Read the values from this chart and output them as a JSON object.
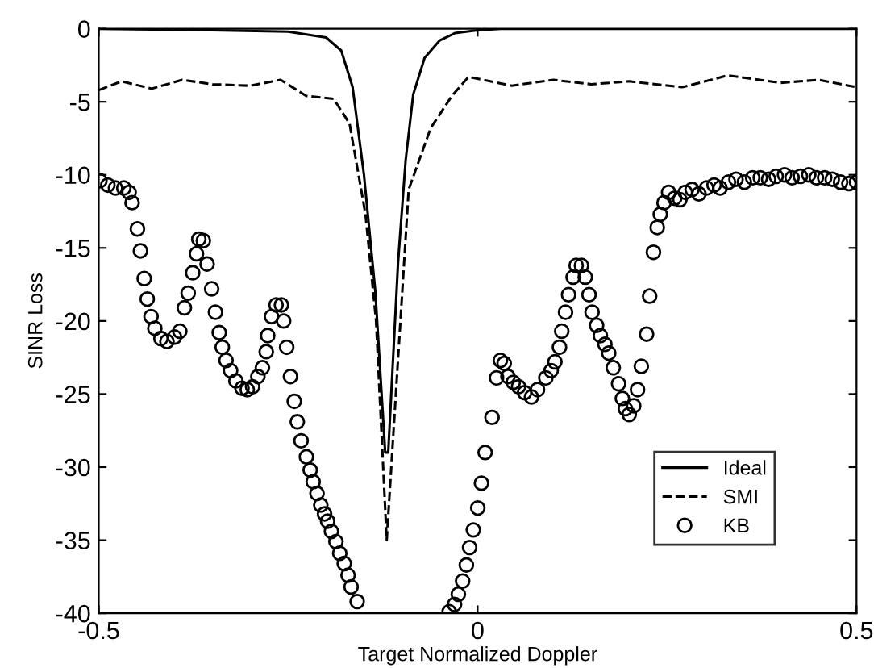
{
  "chart_data": {
    "type": "line",
    "xlabel": "Target Normalized Doppler",
    "ylabel": "SINR Loss",
    "xlim": [
      -0.5,
      0.5
    ],
    "ylim": [
      -40,
      0
    ],
    "xticks": [
      -0.5,
      0,
      0.5
    ],
    "yticks": [
      -40,
      -35,
      -30,
      -25,
      -20,
      -15,
      -10,
      -5,
      0
    ],
    "grid": false,
    "legend": "bottom right",
    "series": [
      {
        "name": "Ideal",
        "color": "#000000",
        "line_style": "solid",
        "marker": "none",
        "x": [
          -0.5,
          -0.35,
          -0.25,
          -0.2,
          -0.18,
          -0.165,
          -0.15,
          -0.135,
          -0.122,
          -0.118,
          -0.105,
          -0.095,
          -0.085,
          -0.07,
          -0.05,
          -0.03,
          0,
          0.03,
          0.5
        ],
        "values": [
          0,
          -0.1,
          -0.2,
          -0.6,
          -1.5,
          -4,
          -10,
          -18,
          -29,
          -29,
          -16,
          -9,
          -4.5,
          -2,
          -0.8,
          -0.3,
          -0.1,
          0,
          0
        ]
      },
      {
        "name": "SMI",
        "color": "#000000",
        "line_style": "dashed",
        "marker": "none",
        "x": [
          -0.5,
          -0.47,
          -0.43,
          -0.39,
          -0.35,
          -0.3,
          -0.26,
          -0.226,
          -0.19,
          -0.169,
          -0.148,
          -0.134,
          -0.12,
          -0.091,
          -0.062,
          -0.034,
          -0.012,
          0.045,
          0.1,
          0.15,
          0.2,
          0.27,
          0.33,
          0.4,
          0.45,
          0.5
        ],
        "values": [
          -4.2,
          -3.6,
          -4.1,
          -3.5,
          -3.8,
          -3.9,
          -3.5,
          -4.6,
          -4.8,
          -6.5,
          -12.7,
          -20,
          -35,
          -11,
          -6.8,
          -4.6,
          -3.3,
          -3.9,
          -3.5,
          -3.8,
          -3.6,
          -4,
          -3.2,
          -3.7,
          -3.5,
          -4
        ]
      },
      {
        "name": "KB",
        "type": "scatter",
        "color": "#000000",
        "marker": "circle",
        "x": [
          -0.4985,
          -0.488,
          -0.478,
          -0.467,
          -0.46,
          -0.456,
          -0.449,
          -0.445,
          -0.44,
          -0.436,
          -0.431,
          -0.426,
          -0.418,
          -0.41,
          -0.4,
          -0.393,
          -0.387,
          -0.382,
          -0.376,
          -0.371,
          -0.368,
          -0.362,
          -0.357,
          -0.351,
          -0.346,
          -0.341,
          -0.337,
          -0.332,
          -0.326,
          -0.319,
          -0.311,
          -0.304,
          -0.297,
          -0.29,
          -0.284,
          -0.279,
          -0.277,
          -0.272,
          -0.266,
          -0.259,
          -0.256,
          -0.252,
          -0.247,
          -0.242,
          -0.238,
          -0.233,
          -0.226,
          -0.221,
          -0.217,
          -0.212,
          -0.207,
          -0.202,
          -0.198,
          -0.193,
          -0.187,
          -0.182,
          -0.176,
          -0.171,
          -0.167,
          -0.159,
          -0.0376,
          -0.0305,
          -0.0255,
          -0.0198,
          -0.0149,
          -0.0106,
          -0.0057,
          0.0002,
          0.005,
          0.0099,
          0.019,
          0.025,
          0.03,
          0.035,
          0.04,
          0.047,
          0.054,
          0.062,
          0.071,
          0.079,
          0.09,
          0.097,
          0.102,
          0.108,
          0.111,
          0.116,
          0.12,
          0.126,
          0.13,
          0.137,
          0.142,
          0.147,
          0.151,
          0.157,
          0.162,
          0.168,
          0.173,
          0.179,
          0.186,
          0.191,
          0.195,
          0.2,
          0.206,
          0.211,
          0.216,
          0.223,
          0.227,
          0.232,
          0.237,
          0.241,
          0.246,
          0.252,
          0.26,
          0.267,
          0.274,
          0.283,
          0.292,
          0.302,
          0.312,
          0.32,
          0.331,
          0.341,
          0.352,
          0.363,
          0.373,
          0.384,
          0.394,
          0.405,
          0.415,
          0.426,
          0.437,
          0.447,
          0.458,
          0.468,
          0.479,
          0.49,
          0.5
        ],
        "values": [
          -10.4,
          -10.7,
          -10.9,
          -10.9,
          -11.2,
          -11.9,
          -13.7,
          -15.2,
          -17.1,
          -18.5,
          -19.7,
          -20.5,
          -21.2,
          -21.4,
          -21.1,
          -20.7,
          -19.1,
          -18.1,
          -16.7,
          -15.4,
          -14.4,
          -14.5,
          -16.1,
          -17.8,
          -19.4,
          -20.8,
          -21.8,
          -22.7,
          -23.4,
          -24.1,
          -24.6,
          -24.7,
          -24.5,
          -23.8,
          -23.2,
          -22.1,
          -21,
          -19.7,
          -18.9,
          -18.9,
          -20,
          -21.8,
          -23.8,
          -25.5,
          -26.9,
          -28.2,
          -29.3,
          -30.2,
          -31,
          -31.8,
          -32.6,
          -33.2,
          -33.7,
          -34.4,
          -35.1,
          -35.9,
          -36.6,
          -37.4,
          -38.2,
          -39.2,
          -39.9,
          -39.4,
          -38.7,
          -37.8,
          -36.7,
          -35.5,
          -34.3,
          -32.8,
          -31.1,
          -29,
          -26.6,
          -23.9,
          -22.7,
          -22.9,
          -23.8,
          -24.2,
          -24.5,
          -24.9,
          -25.2,
          -24.7,
          -23.9,
          -23.4,
          -22.8,
          -21.8,
          -20.7,
          -19.4,
          -18.2,
          -17,
          -16.2,
          -16.2,
          -17,
          -18.2,
          -19.4,
          -20.3,
          -21,
          -21.6,
          -22.2,
          -23.2,
          -24.3,
          -25.3,
          -26,
          -26.4,
          -25.8,
          -24.7,
          -23.1,
          -20.9,
          -18.3,
          -15.3,
          -13.6,
          -12.7,
          -11.9,
          -11.2,
          -11.6,
          -11.7,
          -11.2,
          -11,
          -11.3,
          -10.9,
          -10.7,
          -10.9,
          -10.5,
          -10.3,
          -10.5,
          -10.2,
          -10.2,
          -10.3,
          -10.1,
          -10,
          -10.2,
          -10.1,
          -10,
          -10.2,
          -10.2,
          -10.3,
          -10.5,
          -10.6,
          -10.5
        ]
      }
    ]
  }
}
